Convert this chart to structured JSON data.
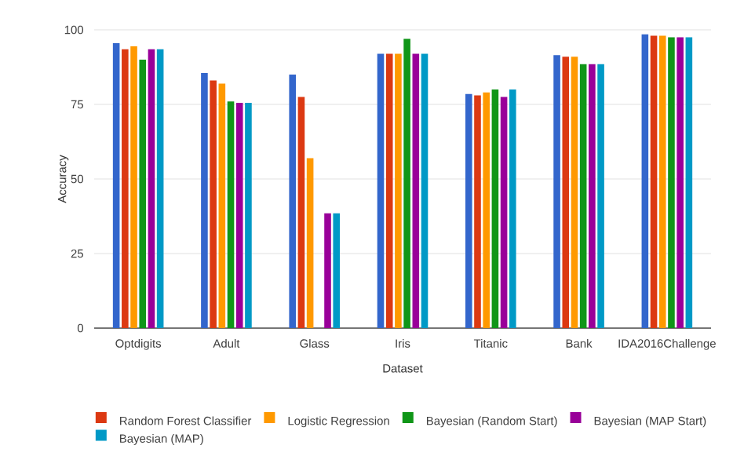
{
  "chart_data": {
    "type": "bar",
    "xlabel": "Dataset",
    "ylabel": "Accuracy",
    "categories": [
      "Optdigits",
      "Adult",
      "Glass",
      "Iris",
      "Titanic",
      "Bank",
      "IDA2016Challenge"
    ],
    "series": [
      {
        "color": "#3366cc",
        "values": [
          95.5,
          85.5,
          85,
          92,
          78.5,
          91.5,
          98.5
        ]
      },
      {
        "name": "Random Forest Classifier",
        "color": "#dc3912",
        "values": [
          93.5,
          83,
          77.5,
          92,
          78,
          91,
          98
        ]
      },
      {
        "name": "Logistic Regression",
        "color": "#ff9900",
        "values": [
          94.5,
          82,
          57,
          92,
          79,
          91,
          98
        ]
      },
      {
        "name": "Bayesian (Random Start)",
        "color": "#109618",
        "values": [
          90,
          76,
          null,
          97,
          80,
          88.5,
          97.5
        ]
      },
      {
        "name": "Bayesian (MAP Start)",
        "color": "#990099",
        "values": [
          93.5,
          75.5,
          38.5,
          92,
          77.5,
          88.5,
          97.5
        ]
      },
      {
        "name": "Bayesian (MAP)",
        "color": "#0099c6",
        "values": [
          93.5,
          75.5,
          38.5,
          92,
          80,
          88.5,
          97.5
        ]
      }
    ],
    "ylim": [
      0,
      100
    ],
    "yticks": [
      0,
      25,
      50,
      75,
      100
    ],
    "grid": "y",
    "legend": "bottom"
  }
}
